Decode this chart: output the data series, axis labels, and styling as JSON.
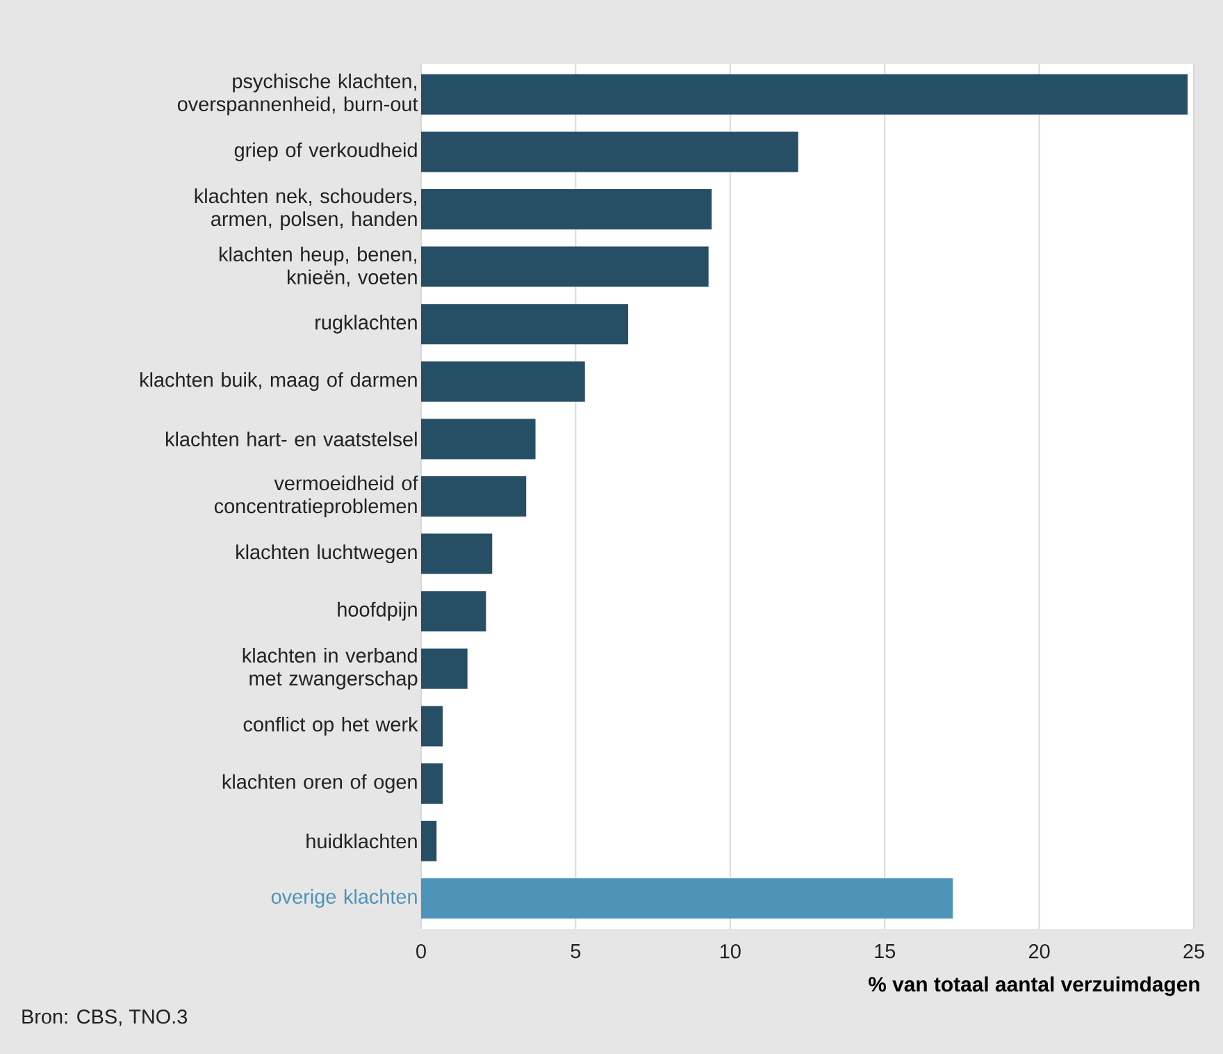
{
  "chart_data": {
    "type": "bar",
    "orientation": "horizontal",
    "categories": [
      "psychische klachten, overspannenheid, burn-out",
      "griep of verkoudheid",
      "klachten nek, schouders, armen, polsen, handen",
      "klachten heup, benen, knieën, voeten",
      "rugklachten",
      "klachten buik, maag of darmen",
      "klachten hart- en vaatstelsel",
      "vermoeidheid of concentratieproblemen",
      "klachten luchtwegen",
      "hoofdpijn",
      "klachten in verband met zwangerschap",
      "conflict op het werk",
      "klachten oren of ogen",
      "huidklachten",
      "overige klachten"
    ],
    "values": [
      24.8,
      12.2,
      9.4,
      9.3,
      6.7,
      5.3,
      3.7,
      3.4,
      2.3,
      2.1,
      1.5,
      0.7,
      0.7,
      0.5,
      17.2
    ],
    "colors": [
      "#264f66",
      "#264f66",
      "#264f66",
      "#264f66",
      "#264f66",
      "#264f66",
      "#264f66",
      "#264f66",
      "#264f66",
      "#264f66",
      "#264f66",
      "#264f66",
      "#264f66",
      "#264f66",
      "#4d94b8"
    ],
    "xlim": [
      0,
      25
    ],
    "xticks": [
      0,
      5,
      10,
      15,
      20,
      25
    ],
    "grid": "x",
    "xlabel": "% van totaal aantal verzuimdagen",
    "annotations": [
      "Bron: CBS, TNO.3"
    ]
  }
}
